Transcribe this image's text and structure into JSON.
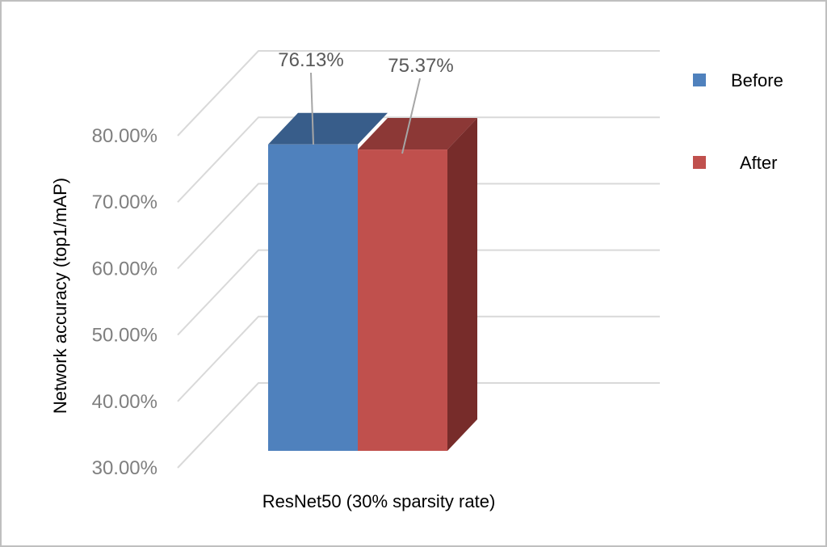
{
  "chart_data": {
    "type": "bar",
    "style": "3d-clustered-column",
    "categories": [
      "ResNet50 (30% sparsity rate)"
    ],
    "series": [
      {
        "name": "Before",
        "values": [
          76.13
        ],
        "label": "76.13%",
        "color": "#4f81bd",
        "top_color": "#385d8a",
        "side_color": "#2c4d75"
      },
      {
        "name": "After",
        "values": [
          75.37
        ],
        "label": "75.37%",
        "color": "#c0504d",
        "top_color": "#8c3836",
        "side_color": "#772c2a"
      }
    ],
    "title": "",
    "xlabel": "ResNet50 (30% sparsity rate)",
    "ylabel": "Network accuracy (top1/mAP)",
    "ylim": [
      30,
      80
    ],
    "yticks": [
      {
        "value": 30,
        "label": "30.00%"
      },
      {
        "value": 40,
        "label": "40.00%"
      },
      {
        "value": 50,
        "label": "50.00%"
      },
      {
        "value": 60,
        "label": "60.00%"
      },
      {
        "value": 70,
        "label": "70.00%"
      },
      {
        "value": 80,
        "label": "80.00%"
      }
    ],
    "grid": true,
    "legend_position": "right"
  }
}
